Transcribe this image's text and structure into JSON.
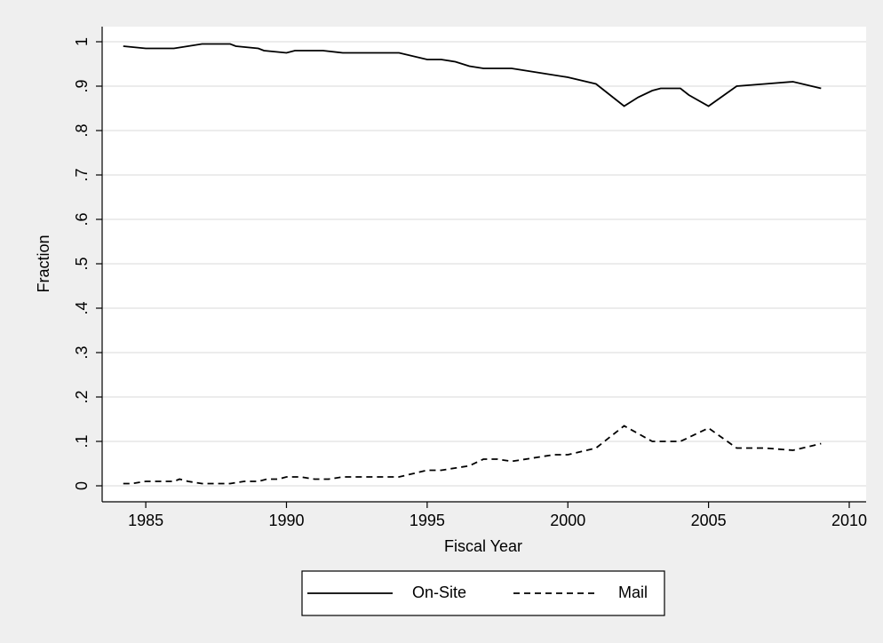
{
  "chart_data": {
    "type": "line",
    "xlabel": "Fiscal Year",
    "ylabel": "Fraction",
    "xlim": [
      1983.45,
      2010.6
    ],
    "xticks": [
      1985,
      1990,
      1995,
      2000,
      2005,
      2010
    ],
    "ylim": [
      -0.036,
      1.034
    ],
    "yticks": [
      0,
      {
        "value": 0.1,
        "label": ".1"
      },
      {
        "value": 0.2,
        "label": ".2"
      },
      {
        "value": 0.3,
        "label": ".3"
      },
      {
        "value": 0.4,
        "label": ".4"
      },
      {
        "value": 0.5,
        "label": ".5"
      },
      {
        "value": 0.6,
        "label": ".6"
      },
      {
        "value": 0.7,
        "label": ".7"
      },
      {
        "value": 0.8,
        "label": ".8"
      },
      {
        "value": 0.9,
        "label": ".9"
      },
      1
    ],
    "grid": true,
    "legend": "bottom",
    "series": [
      {
        "name": "On-Site",
        "color": "#000000",
        "line_style": "solid",
        "x": [
          1984.2,
          1985,
          1986,
          1987,
          1988,
          1988.2,
          1989,
          1989.2,
          1990,
          1990.3,
          1991.3,
          1992,
          1993,
          1994,
          1995,
          1995.5,
          1996,
          1996.5,
          1997,
          1998,
          1999,
          2000,
          2001,
          2002,
          2002.5,
          2003,
          2003.3,
          2004,
          2004.3,
          2005,
          2006,
          2007,
          2008,
          2009
        ],
        "values": [
          0.99,
          0.985,
          0.985,
          0.995,
          0.995,
          0.99,
          0.985,
          0.98,
          0.975,
          0.98,
          0.98,
          0.975,
          0.975,
          0.975,
          0.96,
          0.96,
          0.955,
          0.945,
          0.94,
          0.94,
          0.93,
          0.92,
          0.905,
          0.855,
          0.875,
          0.89,
          0.895,
          0.895,
          0.88,
          0.855,
          0.9,
          0.905,
          0.91,
          0.895
        ]
      },
      {
        "name": "Mail",
        "color": "#000000",
        "line_style": "dashed",
        "x": [
          1984.2,
          1984.5,
          1985,
          1986,
          1986.2,
          1986.5,
          1987,
          1988,
          1988.5,
          1989,
          1989.3,
          1989.7,
          1990,
          1990.5,
          1991,
          1991.5,
          1992,
          1994,
          1995,
          1995.5,
          1996,
          1996.5,
          1997,
          1997.5,
          1998,
          1999,
          1999.5,
          2000,
          2001,
          2001.5,
          2002,
          2003,
          2004,
          2005,
          2006,
          2007,
          2008,
          2009
        ],
        "values": [
          0.005,
          0.005,
          0.01,
          0.01,
          0.015,
          0.01,
          0.005,
          0.005,
          0.01,
          0.01,
          0.015,
          0.015,
          0.02,
          0.02,
          0.015,
          0.015,
          0.02,
          0.02,
          0.035,
          0.035,
          0.04,
          0.045,
          0.06,
          0.06,
          0.055,
          0.065,
          0.07,
          0.07,
          0.085,
          0.11,
          0.135,
          0.1,
          0.1,
          0.13,
          0.085,
          0.085,
          0.08,
          0.095
        ]
      }
    ]
  }
}
